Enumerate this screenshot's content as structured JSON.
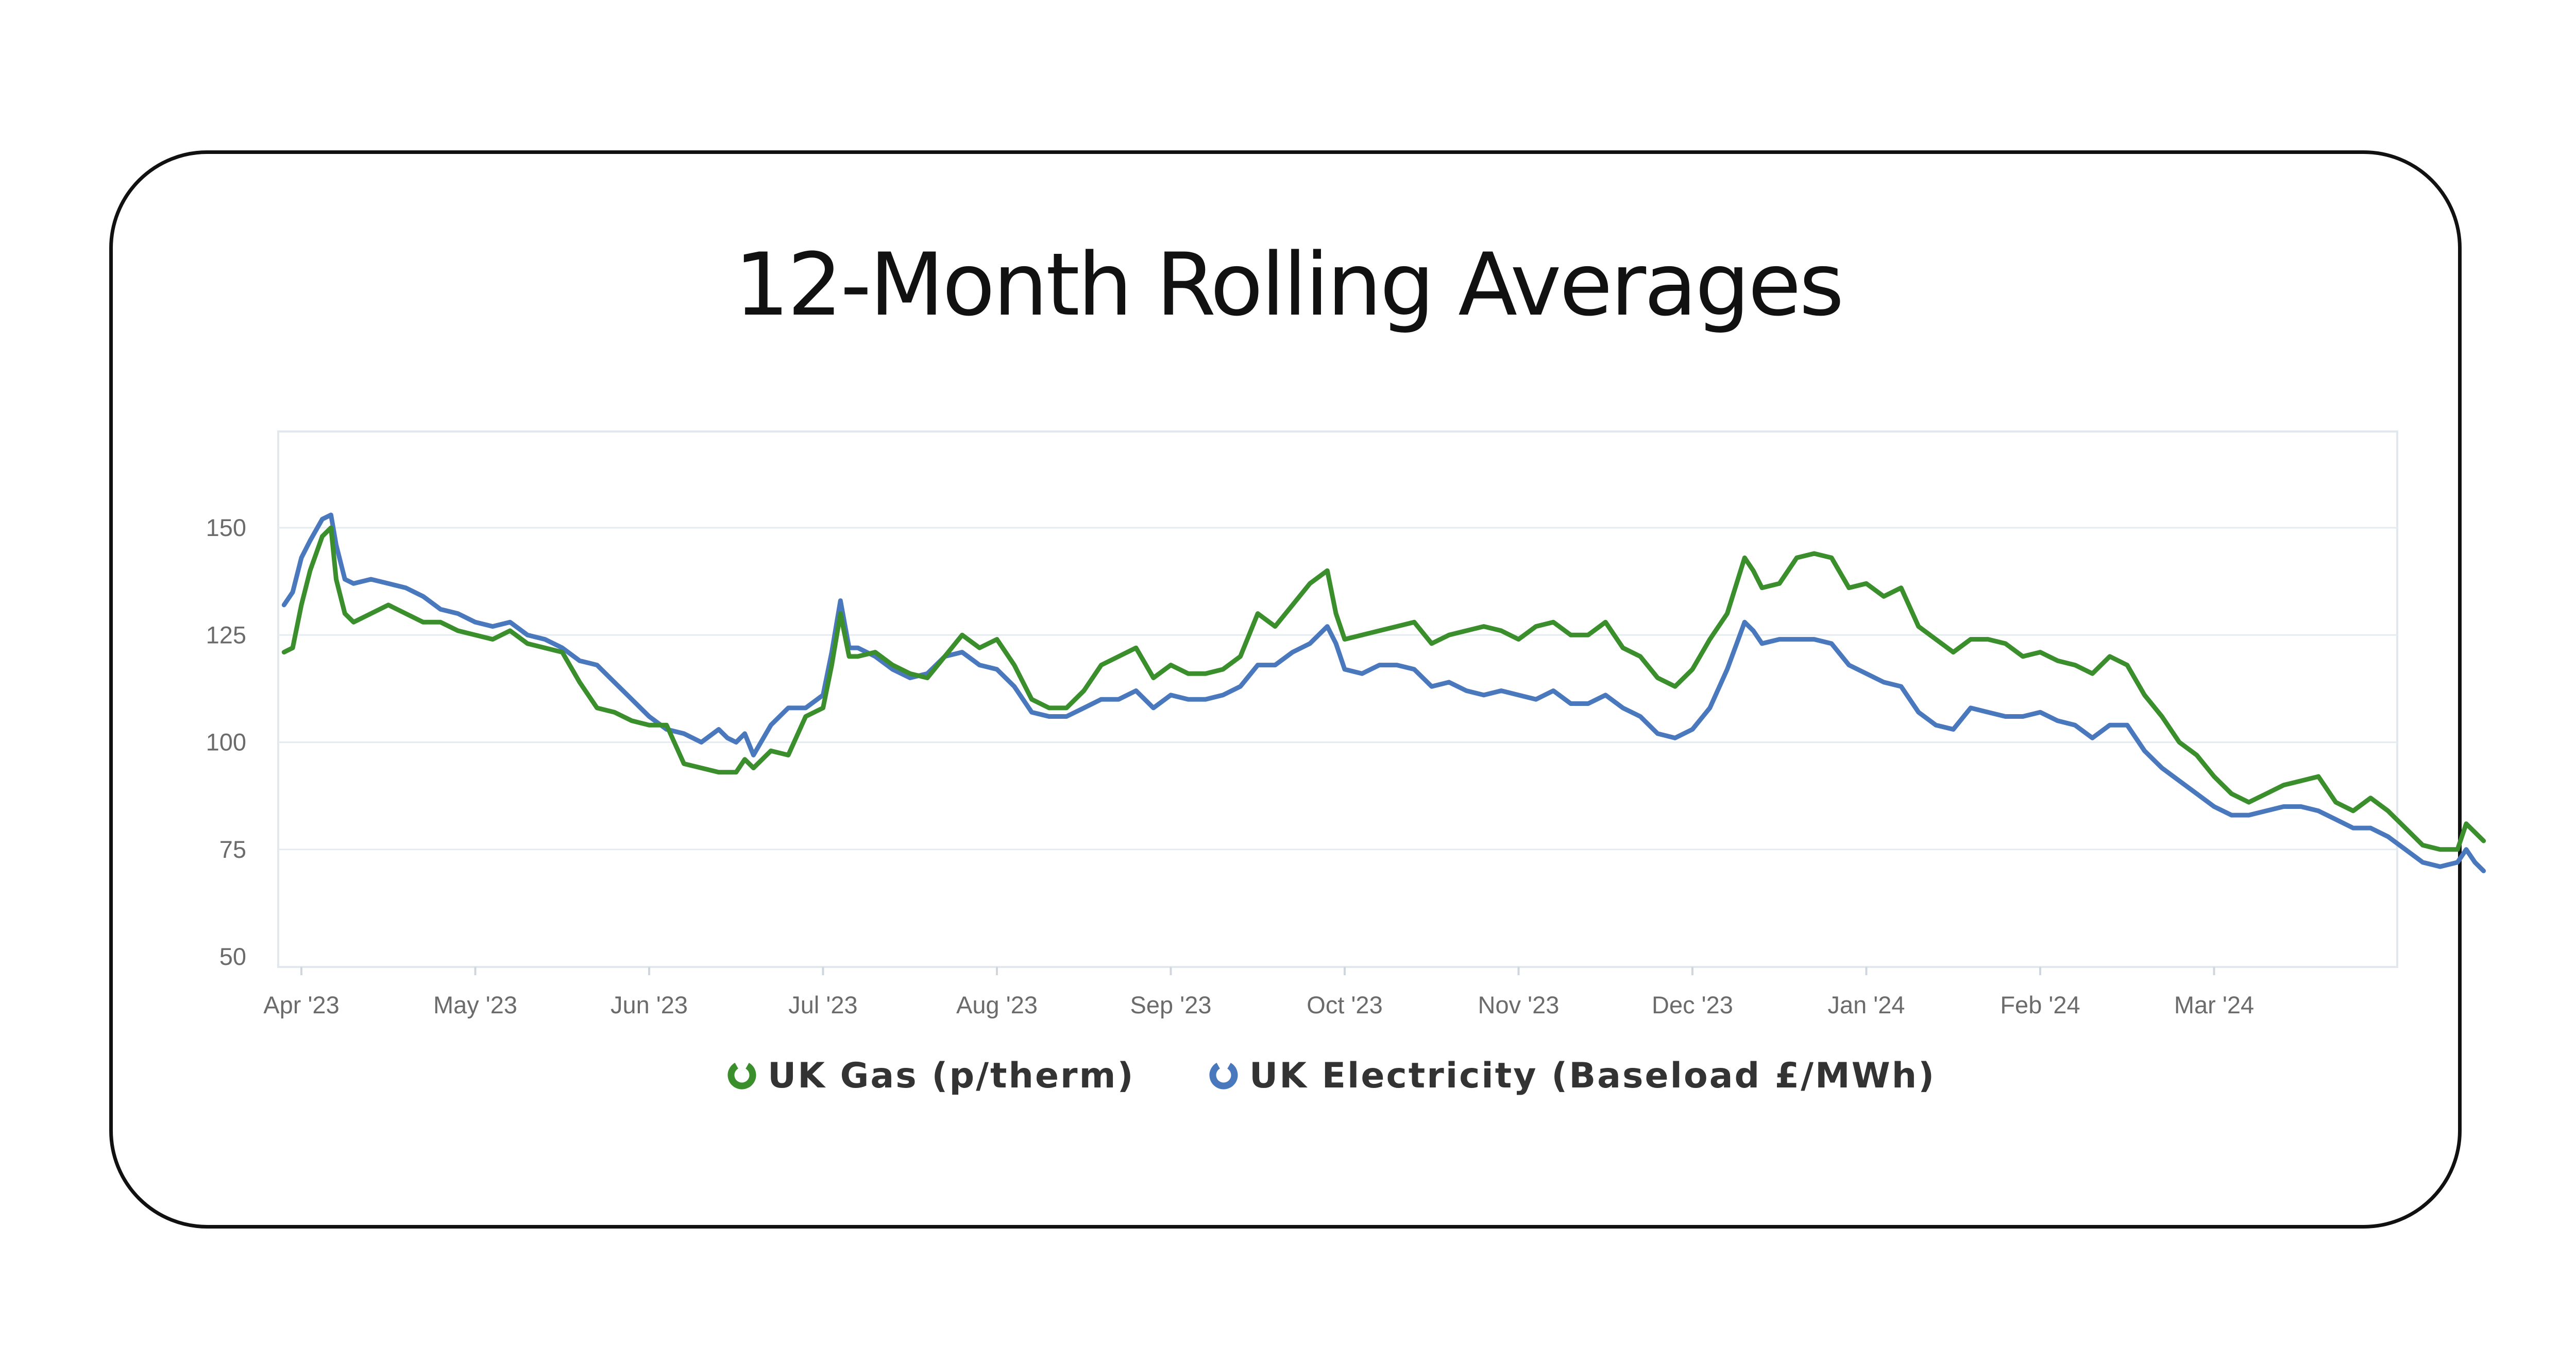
{
  "chart_data": {
    "type": "line",
    "title": "12-Month Rolling Averages",
    "ylim": [
      50,
      150
    ],
    "yticks": [
      50,
      75,
      100,
      125,
      150
    ],
    "xticks": [
      "Apr '23",
      "May '23",
      "Jun '23",
      "Jul '23",
      "Aug '23",
      "Sep '23",
      "Oct '23",
      "Nov '23",
      "Dec '23",
      "Jan '24",
      "Feb '24",
      "Mar '24"
    ],
    "xlim": [
      -0.12,
      12.55
    ],
    "grid": "horizontal",
    "legend_position": "bottom",
    "series": [
      {
        "name": "UK Gas (p/therm)",
        "color": "#3a8f2c",
        "points": [
          [
            -0.1,
            121
          ],
          [
            -0.05,
            122
          ],
          [
            0.0,
            132
          ],
          [
            0.05,
            140
          ],
          [
            0.12,
            148
          ],
          [
            0.17,
            150
          ],
          [
            0.2,
            138
          ],
          [
            0.25,
            130
          ],
          [
            0.3,
            128
          ],
          [
            0.4,
            130
          ],
          [
            0.5,
            132
          ],
          [
            0.6,
            130
          ],
          [
            0.7,
            128
          ],
          [
            0.8,
            128
          ],
          [
            0.9,
            126
          ],
          [
            1.0,
            125
          ],
          [
            1.1,
            124
          ],
          [
            1.2,
            126
          ],
          [
            1.3,
            123
          ],
          [
            1.4,
            122
          ],
          [
            1.5,
            121
          ],
          [
            1.6,
            114
          ],
          [
            1.7,
            108
          ],
          [
            1.8,
            107
          ],
          [
            1.9,
            105
          ],
          [
            2.0,
            104
          ],
          [
            2.1,
            104
          ],
          [
            2.2,
            95
          ],
          [
            2.3,
            94
          ],
          [
            2.4,
            93
          ],
          [
            2.5,
            93
          ],
          [
            2.55,
            96
          ],
          [
            2.6,
            94
          ],
          [
            2.7,
            98
          ],
          [
            2.8,
            97
          ],
          [
            2.9,
            106
          ],
          [
            3.0,
            108
          ],
          [
            3.05,
            118
          ],
          [
            3.1,
            130
          ],
          [
            3.15,
            120
          ],
          [
            3.2,
            120
          ],
          [
            3.3,
            121
          ],
          [
            3.4,
            118
          ],
          [
            3.5,
            116
          ],
          [
            3.6,
            115
          ],
          [
            3.7,
            120
          ],
          [
            3.8,
            125
          ],
          [
            3.9,
            122
          ],
          [
            4.0,
            124
          ],
          [
            4.1,
            118
          ],
          [
            4.2,
            110
          ],
          [
            4.3,
            108
          ],
          [
            4.4,
            108
          ],
          [
            4.5,
            112
          ],
          [
            4.6,
            118
          ],
          [
            4.7,
            120
          ],
          [
            4.8,
            122
          ],
          [
            4.9,
            115
          ],
          [
            5.0,
            118
          ],
          [
            5.1,
            116
          ],
          [
            5.2,
            116
          ],
          [
            5.3,
            117
          ],
          [
            5.4,
            120
          ],
          [
            5.5,
            130
          ],
          [
            5.6,
            127
          ],
          [
            5.7,
            132
          ],
          [
            5.8,
            137
          ],
          [
            5.9,
            140
          ],
          [
            5.95,
            130
          ],
          [
            6.0,
            124
          ],
          [
            6.1,
            125
          ],
          [
            6.2,
            126
          ],
          [
            6.3,
            127
          ],
          [
            6.4,
            128
          ],
          [
            6.5,
            123
          ],
          [
            6.6,
            125
          ],
          [
            6.7,
            126
          ],
          [
            6.8,
            127
          ],
          [
            6.9,
            126
          ],
          [
            7.0,
            124
          ],
          [
            7.1,
            127
          ],
          [
            7.2,
            128
          ],
          [
            7.3,
            125
          ],
          [
            7.4,
            125
          ],
          [
            7.5,
            128
          ],
          [
            7.6,
            122
          ],
          [
            7.7,
            120
          ],
          [
            7.8,
            115
          ],
          [
            7.9,
            113
          ],
          [
            8.0,
            117
          ],
          [
            8.1,
            124
          ],
          [
            8.2,
            130
          ],
          [
            8.3,
            143
          ],
          [
            8.35,
            140
          ],
          [
            8.4,
            136
          ],
          [
            8.5,
            137
          ],
          [
            8.6,
            143
          ],
          [
            8.7,
            144
          ],
          [
            8.8,
            143
          ],
          [
            8.9,
            136
          ],
          [
            9.0,
            137
          ],
          [
            9.1,
            134
          ],
          [
            9.2,
            136
          ],
          [
            9.3,
            127
          ],
          [
            9.4,
            124
          ],
          [
            9.5,
            121
          ],
          [
            9.6,
            124
          ],
          [
            9.7,
            124
          ],
          [
            9.8,
            123
          ],
          [
            9.9,
            120
          ],
          [
            10.0,
            121
          ],
          [
            10.1,
            119
          ],
          [
            10.2,
            118
          ],
          [
            10.3,
            116
          ],
          [
            10.4,
            120
          ],
          [
            10.5,
            118
          ],
          [
            10.6,
            111
          ],
          [
            10.7,
            106
          ],
          [
            10.8,
            100
          ],
          [
            10.9,
            97
          ],
          [
            11.0,
            92
          ],
          [
            11.1,
            88
          ],
          [
            11.2,
            86
          ],
          [
            11.3,
            88
          ],
          [
            11.4,
            90
          ],
          [
            11.5,
            91
          ],
          [
            11.6,
            92
          ],
          [
            11.7,
            86
          ],
          [
            11.8,
            84
          ],
          [
            11.9,
            87
          ],
          [
            12.0,
            84
          ],
          [
            12.1,
            80
          ],
          [
            12.2,
            76
          ],
          [
            12.3,
            75
          ],
          [
            12.4,
            75
          ],
          [
            12.45,
            81
          ],
          [
            12.5,
            79
          ],
          [
            12.55,
            77
          ]
        ]
      },
      {
        "name": "UK Electricity (Baseload £/MWh)",
        "color": "#4a78bd",
        "points": [
          [
            -0.1,
            132
          ],
          [
            -0.05,
            135
          ],
          [
            0.0,
            143
          ],
          [
            0.05,
            147
          ],
          [
            0.12,
            152
          ],
          [
            0.17,
            153
          ],
          [
            0.2,
            146
          ],
          [
            0.25,
            138
          ],
          [
            0.3,
            137
          ],
          [
            0.4,
            138
          ],
          [
            0.5,
            137
          ],
          [
            0.6,
            136
          ],
          [
            0.7,
            134
          ],
          [
            0.8,
            131
          ],
          [
            0.9,
            130
          ],
          [
            1.0,
            128
          ],
          [
            1.1,
            127
          ],
          [
            1.2,
            128
          ],
          [
            1.3,
            125
          ],
          [
            1.4,
            124
          ],
          [
            1.5,
            122
          ],
          [
            1.6,
            119
          ],
          [
            1.7,
            118
          ],
          [
            1.8,
            114
          ],
          [
            1.9,
            110
          ],
          [
            2.0,
            106
          ],
          [
            2.1,
            103
          ],
          [
            2.2,
            102
          ],
          [
            2.3,
            100
          ],
          [
            2.4,
            103
          ],
          [
            2.45,
            101
          ],
          [
            2.5,
            100
          ],
          [
            2.55,
            102
          ],
          [
            2.6,
            97
          ],
          [
            2.7,
            104
          ],
          [
            2.8,
            108
          ],
          [
            2.9,
            108
          ],
          [
            3.0,
            111
          ],
          [
            3.05,
            121
          ],
          [
            3.1,
            133
          ],
          [
            3.15,
            122
          ],
          [
            3.2,
            122
          ],
          [
            3.3,
            120
          ],
          [
            3.4,
            117
          ],
          [
            3.5,
            115
          ],
          [
            3.6,
            116
          ],
          [
            3.7,
            120
          ],
          [
            3.8,
            121
          ],
          [
            3.9,
            118
          ],
          [
            4.0,
            117
          ],
          [
            4.1,
            113
          ],
          [
            4.2,
            107
          ],
          [
            4.3,
            106
          ],
          [
            4.4,
            106
          ],
          [
            4.5,
            108
          ],
          [
            4.6,
            110
          ],
          [
            4.7,
            110
          ],
          [
            4.8,
            112
          ],
          [
            4.9,
            108
          ],
          [
            5.0,
            111
          ],
          [
            5.1,
            110
          ],
          [
            5.2,
            110
          ],
          [
            5.3,
            111
          ],
          [
            5.4,
            113
          ],
          [
            5.5,
            118
          ],
          [
            5.6,
            118
          ],
          [
            5.7,
            121
          ],
          [
            5.8,
            123
          ],
          [
            5.9,
            127
          ],
          [
            5.95,
            123
          ],
          [
            6.0,
            117
          ],
          [
            6.1,
            116
          ],
          [
            6.2,
            118
          ],
          [
            6.3,
            118
          ],
          [
            6.4,
            117
          ],
          [
            6.5,
            113
          ],
          [
            6.6,
            114
          ],
          [
            6.7,
            112
          ],
          [
            6.8,
            111
          ],
          [
            6.9,
            112
          ],
          [
            7.0,
            111
          ],
          [
            7.1,
            110
          ],
          [
            7.2,
            112
          ],
          [
            7.3,
            109
          ],
          [
            7.4,
            109
          ],
          [
            7.5,
            111
          ],
          [
            7.6,
            108
          ],
          [
            7.7,
            106
          ],
          [
            7.8,
            102
          ],
          [
            7.9,
            101
          ],
          [
            8.0,
            103
          ],
          [
            8.1,
            108
          ],
          [
            8.2,
            117
          ],
          [
            8.3,
            128
          ],
          [
            8.35,
            126
          ],
          [
            8.4,
            123
          ],
          [
            8.5,
            124
          ],
          [
            8.6,
            124
          ],
          [
            8.7,
            124
          ],
          [
            8.8,
            123
          ],
          [
            8.9,
            118
          ],
          [
            9.0,
            116
          ],
          [
            9.1,
            114
          ],
          [
            9.2,
            113
          ],
          [
            9.3,
            107
          ],
          [
            9.4,
            104
          ],
          [
            9.5,
            103
          ],
          [
            9.6,
            108
          ],
          [
            9.7,
            107
          ],
          [
            9.8,
            106
          ],
          [
            9.9,
            106
          ],
          [
            10.0,
            107
          ],
          [
            10.1,
            105
          ],
          [
            10.2,
            104
          ],
          [
            10.3,
            101
          ],
          [
            10.4,
            104
          ],
          [
            10.5,
            104
          ],
          [
            10.6,
            98
          ],
          [
            10.7,
            94
          ],
          [
            10.8,
            91
          ],
          [
            10.9,
            88
          ],
          [
            11.0,
            85
          ],
          [
            11.1,
            83
          ],
          [
            11.2,
            83
          ],
          [
            11.3,
            84
          ],
          [
            11.4,
            85
          ],
          [
            11.5,
            85
          ],
          [
            11.6,
            84
          ],
          [
            11.7,
            82
          ],
          [
            11.8,
            80
          ],
          [
            11.9,
            80
          ],
          [
            12.0,
            78
          ],
          [
            12.1,
            75
          ],
          [
            12.2,
            72
          ],
          [
            12.3,
            71
          ],
          [
            12.4,
            72
          ],
          [
            12.45,
            75
          ],
          [
            12.5,
            72
          ],
          [
            12.55,
            70
          ]
        ]
      }
    ]
  }
}
